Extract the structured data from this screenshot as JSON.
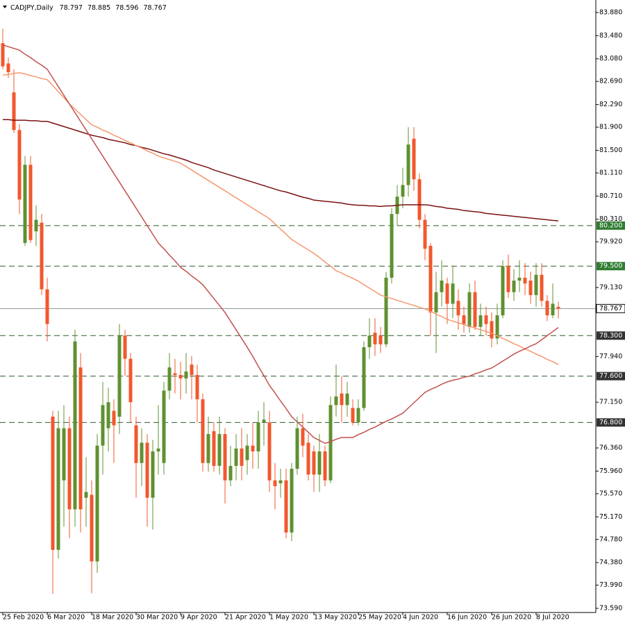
{
  "chart_data": {
    "type": "candlestick",
    "title": "CADJPY,Daily",
    "ylim": [
      73.518,
      84.096
    ],
    "yticks": [
      {
        "value": 83.88,
        "label": "83.880"
      },
      {
        "value": 83.48,
        "label": "83.480"
      },
      {
        "value": 83.08,
        "label": "83.080"
      },
      {
        "value": 82.69,
        "label": "82.690"
      },
      {
        "value": 82.29,
        "label": "82.290"
      },
      {
        "value": 81.9,
        "label": "81.900"
      },
      {
        "value": 81.5,
        "label": "81.500"
      },
      {
        "value": 81.11,
        "label": "81.110"
      },
      {
        "value": 80.71,
        "label": "80.710"
      },
      {
        "value": 80.31,
        "label": "80.310"
      },
      {
        "value": 79.92,
        "label": "79.920"
      },
      {
        "value": 79.13,
        "label": "79.130"
      },
      {
        "value": 77.94,
        "label": "77.940"
      },
      {
        "value": 77.15,
        "label": "77.150"
      },
      {
        "value": 76.36,
        "label": "76.360"
      },
      {
        "value": 75.96,
        "label": "75.960"
      },
      {
        "value": 75.57,
        "label": "75.570"
      },
      {
        "value": 75.17,
        "label": "75.170"
      },
      {
        "value": 74.78,
        "label": "74.780"
      },
      {
        "value": 74.38,
        "label": "74.380"
      },
      {
        "value": 73.99,
        "label": "73.990"
      },
      {
        "value": 73.59,
        "label": "73.590"
      }
    ],
    "categories": [
      "25 Feb 2020",
      null,
      null,
      null,
      null,
      null,
      null,
      null,
      "6 Mar 2020",
      null,
      null,
      null,
      null,
      null,
      null,
      null,
      "18 Mar 2020",
      null,
      null,
      null,
      null,
      null,
      null,
      null,
      "30 Mar 2020",
      null,
      null,
      null,
      null,
      null,
      null,
      null,
      "9 Apr 2020",
      null,
      null,
      null,
      null,
      null,
      null,
      null,
      "21 Apr 2020",
      null,
      null,
      null,
      null,
      null,
      null,
      null,
      "1 May 2020",
      null,
      null,
      null,
      null,
      null,
      null,
      null,
      "13 May 2020",
      null,
      null,
      null,
      null,
      null,
      null,
      null,
      "25 May 2020",
      null,
      null,
      null,
      null,
      null,
      null,
      null,
      "4 Jun 2020",
      null,
      null,
      null,
      null,
      null,
      null,
      null,
      "16 Jun 2020",
      null,
      null,
      null,
      null,
      null,
      null,
      null,
      "26 Jun 2020",
      null,
      null,
      null,
      null,
      null,
      null,
      null,
      "8 Jul 2020",
      null,
      null,
      null,
      null
    ],
    "open": [
      83.35,
      83.0,
      82.5,
      81.85,
      79.9,
      81.25,
      80.1,
      80.25,
      79.1,
      76.9,
      74.6,
      75.8,
      76.7,
      75.3,
      77.75,
      75.5,
      75.55,
      74.4,
      76.4,
      76.7,
      77.0,
      76.9,
      78.3,
      77.9,
      76.75,
      76.1,
      76.45,
      75.5,
      76.3,
      76.1,
      77.35,
      77.65,
      77.62,
      77.56,
      77.8,
      77.62,
      77.2,
      76.1,
      76.65,
      76.05,
      76.6,
      75.8,
      76.05,
      76.35,
      76.15,
      76.4,
      76.3,
      76.8,
      76.8,
      75.8,
      75.75,
      75.8,
      74.9,
      76.0,
      76.7,
      76.45,
      76.3,
      75.9,
      76.3,
      75.8,
      77.1,
      77.3,
      77.1,
      77.05,
      76.8,
      77.05,
      78.1,
      78.35,
      78.3,
      78.15,
      79.3,
      80.4,
      80.7,
      80.9,
      81.7,
      81.0,
      80.3,
      79.85,
      78.7,
      79.05,
      79.2,
      78.85,
      78.9,
      78.65,
      78.45,
      79.05,
      78.45,
      78.65,
      78.55,
      78.25,
      78.65,
      79.5,
      79.05,
      79.25,
      79.3,
      79.25,
      79.0,
      79.35,
      78.9,
      78.65,
      78.797
    ],
    "high": [
      83.6,
      83.1,
      82.9,
      81.95,
      81.4,
      81.4,
      80.55,
      80.4,
      79.3,
      77.0,
      77.0,
      77.1,
      76.9,
      78.4,
      78.0,
      76.2,
      75.8,
      76.6,
      77.5,
      77.4,
      77.2,
      78.5,
      78.4,
      78.0,
      76.9,
      76.7,
      76.6,
      76.5,
      77.1,
      77.5,
      78.0,
      77.9,
      77.85,
      78.0,
      77.95,
      77.8,
      77.3,
      76.9,
      76.8,
      76.9,
      76.7,
      76.4,
      76.6,
      76.7,
      76.6,
      76.8,
      77.0,
      77.15,
      77.0,
      76.1,
      76.0,
      76.0,
      76.1,
      76.9,
      76.95,
      76.6,
      76.4,
      76.6,
      76.4,
      77.25,
      77.8,
      77.6,
      77.5,
      77.2,
      77.2,
      78.2,
      78.6,
      78.6,
      78.45,
      79.4,
      80.5,
      80.9,
      81.2,
      81.9,
      81.9,
      81.1,
      80.4,
      79.9,
      79.4,
      79.6,
      79.3,
      79.5,
      79.1,
      78.8,
      79.2,
      79.25,
      78.85,
      78.8,
      78.7,
      78.85,
      79.6,
      79.7,
      79.45,
      79.6,
      79.55,
      79.4,
      79.55,
      79.55,
      79.0,
      79.2,
      78.885
    ],
    "low": [
      82.9,
      82.75,
      81.8,
      80.4,
      79.85,
      79.9,
      79.85,
      79.0,
      78.2,
      73.84,
      74.45,
      75.0,
      74.8,
      75.0,
      74.9,
      75.0,
      73.85,
      74.2,
      75.9,
      76.3,
      76.1,
      76.6,
      77.6,
      76.8,
      75.5,
      75.7,
      75.0,
      74.95,
      75.9,
      75.9,
      77.2,
      77.3,
      77.2,
      77.3,
      77.2,
      76.8,
      75.95,
      75.95,
      75.95,
      75.9,
      75.4,
      75.7,
      75.8,
      75.8,
      75.9,
      76.0,
      76.0,
      76.4,
      75.6,
      75.3,
      75.5,
      74.8,
      74.75,
      75.9,
      76.2,
      75.8,
      75.6,
      75.6,
      75.7,
      75.75,
      76.9,
      76.8,
      76.9,
      76.75,
      76.75,
      77.0,
      77.9,
      77.95,
      78.0,
      78.1,
      79.2,
      80.2,
      80.5,
      80.7,
      80.8,
      80.15,
      79.6,
      78.3,
      78.0,
      78.8,
      78.5,
      78.6,
      78.4,
      78.35,
      78.35,
      78.4,
      78.3,
      78.3,
      78.1,
      78.15,
      78.6,
      78.95,
      78.9,
      79.05,
      79.0,
      78.85,
      78.8,
      78.8,
      78.55,
      78.6,
      78.596
    ],
    "close": [
      82.95,
      82.85,
      81.85,
      80.65,
      81.25,
      79.95,
      80.3,
      79.1,
      78.5,
      74.6,
      76.7,
      76.7,
      75.3,
      78.2,
      75.3,
      75.6,
      74.4,
      76.4,
      77.1,
      77.15,
      76.75,
      78.3,
      77.9,
      77.15,
      76.1,
      76.45,
      75.5,
      76.3,
      76.35,
      77.35,
      77.75,
      77.62,
      77.56,
      77.68,
      77.62,
      77.2,
      76.1,
      76.6,
      76.05,
      76.6,
      75.8,
      76.05,
      76.35,
      76.05,
      76.4,
      76.3,
      76.8,
      76.85,
      75.8,
      75.7,
      75.8,
      74.9,
      76.0,
      76.7,
      76.4,
      75.9,
      75.9,
      76.3,
      75.8,
      77.1,
      77.25,
      77.1,
      77.3,
      76.8,
      77.05,
      78.1,
      78.3,
      78.15,
      78.15,
      79.3,
      80.4,
      80.7,
      80.9,
      81.6,
      81.0,
      80.3,
      79.8,
      78.7,
      79.05,
      79.25,
      78.85,
      79.2,
      78.65,
      78.5,
      79.05,
      78.45,
      78.65,
      78.5,
      78.25,
      78.65,
      79.5,
      79.05,
      79.25,
      79.3,
      79.2,
      79.0,
      79.35,
      78.9,
      78.65,
      78.85,
      78.767
    ],
    "up_color": "#5f9130",
    "down_color": "#f2572d",
    "lines": [
      {
        "color": "#7a1010",
        "values": [
          82.03,
          82.03,
          82.02,
          82.02,
          82.02,
          82.01,
          82.01,
          82.0,
          82.0,
          81.97,
          81.94,
          81.91,
          81.88,
          81.85,
          81.82,
          81.79,
          81.76,
          81.74,
          81.72,
          81.69,
          81.67,
          81.65,
          81.63,
          81.6,
          81.58,
          81.55,
          81.53,
          81.5,
          81.47,
          81.44,
          81.42,
          81.39,
          81.36,
          81.33,
          81.29,
          81.26,
          81.23,
          81.2,
          81.16,
          81.13,
          81.1,
          81.07,
          81.04,
          81.01,
          80.98,
          80.95,
          80.92,
          80.89,
          80.86,
          80.83,
          80.8,
          80.78,
          80.75,
          80.72,
          80.69,
          80.67,
          80.64,
          80.63,
          80.62,
          80.61,
          80.6,
          80.59,
          80.57,
          80.56,
          80.55,
          80.55,
          80.54,
          80.54,
          80.53,
          80.54,
          80.54,
          80.55,
          80.56,
          80.56,
          80.56,
          80.56,
          80.56,
          80.55,
          80.53,
          80.52,
          80.5,
          80.49,
          80.48,
          80.46,
          80.45,
          80.44,
          80.43,
          80.41,
          80.4,
          80.39,
          80.38,
          80.37,
          80.36,
          80.35,
          80.34,
          80.33,
          80.32,
          80.31,
          80.3,
          80.29,
          80.28
        ]
      },
      {
        "color": "#f4976c",
        "values": [
          82.8,
          82.81,
          82.83,
          82.84,
          82.82,
          82.79,
          82.77,
          82.74,
          82.72,
          82.62,
          82.51,
          82.41,
          82.3,
          82.21,
          82.12,
          82.03,
          81.94,
          81.9,
          81.85,
          81.81,
          81.76,
          81.72,
          81.67,
          81.63,
          81.58,
          81.54,
          81.49,
          81.45,
          81.4,
          81.37,
          81.34,
          81.31,
          81.28,
          81.22,
          81.16,
          81.1,
          81.04,
          80.98,
          80.92,
          80.86,
          80.8,
          80.74,
          80.68,
          80.62,
          80.56,
          80.5,
          80.44,
          80.38,
          80.32,
          80.23,
          80.14,
          80.05,
          79.96,
          79.9,
          79.84,
          79.78,
          79.72,
          79.65,
          79.57,
          79.5,
          79.42,
          79.38,
          79.33,
          79.29,
          79.24,
          79.18,
          79.12,
          79.06,
          79.0,
          78.97,
          78.94,
          78.91,
          78.88,
          78.85,
          78.82,
          78.79,
          78.76,
          78.72,
          78.67,
          78.63,
          78.58,
          78.55,
          78.52,
          78.49,
          78.46,
          78.43,
          78.4,
          78.37,
          78.34,
          78.3,
          78.25,
          78.21,
          78.16,
          78.12,
          78.07,
          78.03,
          77.98,
          77.94,
          77.89,
          77.85,
          77.8
        ]
      },
      {
        "color": "#c0504d",
        "values": [
          83.32,
          83.29,
          83.26,
          83.23,
          83.16,
          83.1,
          83.03,
          82.97,
          82.9,
          82.75,
          82.6,
          82.45,
          82.3,
          82.15,
          82.0,
          81.85,
          81.7,
          81.55,
          81.4,
          81.25,
          81.1,
          80.95,
          80.8,
          80.65,
          80.5,
          80.35,
          80.2,
          80.05,
          79.9,
          79.8,
          79.69,
          79.59,
          79.48,
          79.41,
          79.33,
          79.26,
          79.18,
          79.06,
          78.94,
          78.82,
          78.7,
          78.55,
          78.4,
          78.25,
          78.1,
          77.94,
          77.77,
          77.61,
          77.44,
          77.31,
          77.17,
          77.04,
          76.9,
          76.81,
          76.72,
          76.63,
          76.54,
          76.49,
          76.44,
          76.47,
          76.51,
          76.54,
          76.54,
          76.54,
          76.59,
          76.63,
          76.68,
          76.72,
          76.77,
          76.82,
          76.86,
          76.91,
          76.96,
          77.05,
          77.14,
          77.23,
          77.32,
          77.37,
          77.41,
          77.46,
          77.5,
          77.53,
          77.55,
          77.58,
          77.6,
          77.64,
          77.67,
          77.71,
          77.74,
          77.8,
          77.86,
          77.92,
          77.98,
          78.03,
          78.07,
          78.12,
          78.16,
          78.23,
          78.3,
          78.37,
          78.44
        ]
      }
    ],
    "levels": [
      {
        "value": 80.2,
        "label": "80.200",
        "color": "#2f7d32"
      },
      {
        "value": 79.5,
        "label": "79.500",
        "color": "#2f7d32"
      },
      {
        "value": 78.3,
        "label": "78.300",
        "color": "#333333"
      },
      {
        "value": 77.6,
        "label": "77.600",
        "color": "#333333"
      },
      {
        "value": 76.8,
        "label": "76.800",
        "color": "#333333"
      }
    ],
    "level_line_color": "#2f5a2f",
    "price_line_color": "#8a9a8a"
  }
}
